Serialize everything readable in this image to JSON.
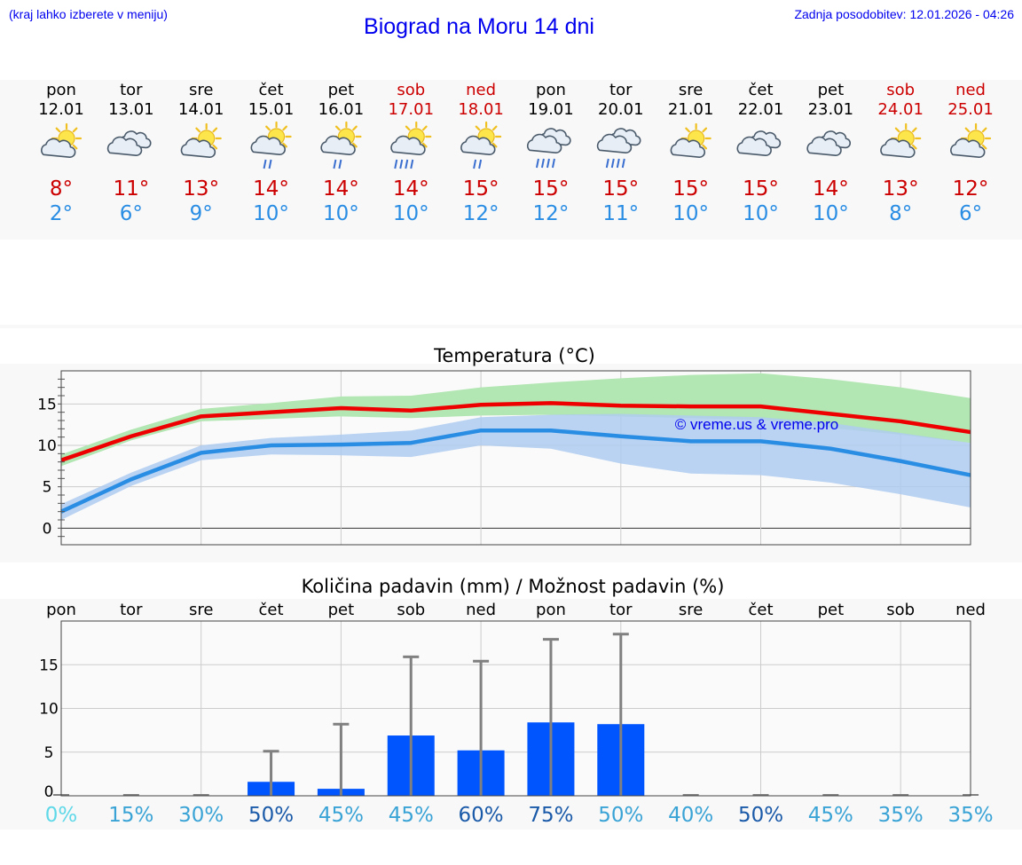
{
  "header": {
    "hint": "(kraj lahko izberete v meniju)",
    "title": "Biograd na Moru 14 dni",
    "updated": "Zadnja posodobitev: 12.01.2026 - 04:26"
  },
  "colors": {
    "weekday": "#000000",
    "weekend": "#cc0000",
    "tmax": "#cc0000",
    "tmin": "#2a8de4",
    "bar": "#0055ff",
    "error": "#808080"
  },
  "days": [
    {
      "name": "pon",
      "date": "12.01",
      "weekend": false,
      "icon": "sun-cloud-icon",
      "tmax": "8°",
      "tmin": "2°"
    },
    {
      "name": "tor",
      "date": "13.01",
      "weekend": false,
      "icon": "clouds-icon",
      "tmax": "11°",
      "tmin": "6°"
    },
    {
      "name": "sre",
      "date": "14.01",
      "weekend": false,
      "icon": "sun-cloud-icon",
      "tmax": "13°",
      "tmin": "9°"
    },
    {
      "name": "čet",
      "date": "15.01",
      "weekend": false,
      "icon": "sun-cloud-rain-icon",
      "tmax": "14°",
      "tmin": "10°"
    },
    {
      "name": "pet",
      "date": "16.01",
      "weekend": false,
      "icon": "sun-cloud-rain-icon",
      "tmax": "14°",
      "tmin": "10°"
    },
    {
      "name": "sob",
      "date": "17.01",
      "weekend": true,
      "icon": "sun-cloud-heavy-rain-icon",
      "tmax": "14°",
      "tmin": "10°"
    },
    {
      "name": "ned",
      "date": "18.01",
      "weekend": true,
      "icon": "sun-cloud-rain-icon",
      "tmax": "15°",
      "tmin": "12°"
    },
    {
      "name": "pon",
      "date": "19.01",
      "weekend": false,
      "icon": "clouds-heavy-rain-icon",
      "tmax": "15°",
      "tmin": "12°"
    },
    {
      "name": "tor",
      "date": "20.01",
      "weekend": false,
      "icon": "clouds-heavy-rain-icon",
      "tmax": "15°",
      "tmin": "11°"
    },
    {
      "name": "sre",
      "date": "21.01",
      "weekend": false,
      "icon": "sun-cloud-icon",
      "tmax": "15°",
      "tmin": "10°"
    },
    {
      "name": "čet",
      "date": "22.01",
      "weekend": false,
      "icon": "clouds-icon",
      "tmax": "15°",
      "tmin": "10°"
    },
    {
      "name": "pet",
      "date": "23.01",
      "weekend": false,
      "icon": "clouds-icon",
      "tmax": "14°",
      "tmin": "10°"
    },
    {
      "name": "sob",
      "date": "24.01",
      "weekend": true,
      "icon": "sun-cloud-icon",
      "tmax": "13°",
      "tmin": "8°"
    },
    {
      "name": "ned",
      "date": "25.01",
      "weekend": true,
      "icon": "sun-cloud-icon",
      "tmax": "12°",
      "tmin": "6°"
    }
  ],
  "chart_data": [
    {
      "type": "line",
      "title": "Temperatura (°C)",
      "watermark": "© vreme.us & vreme.pro",
      "ylim": [
        -2,
        19
      ],
      "yticks": [
        "0",
        "5",
        "10",
        "15"
      ],
      "series": [
        {
          "name": "max",
          "color": "#ee0000",
          "values": [
            8.2,
            11.1,
            13.5,
            14.0,
            14.5,
            14.2,
            14.9,
            15.1,
            14.8,
            14.7,
            14.7,
            13.8,
            12.9,
            11.6
          ]
        },
        {
          "name": "min",
          "color": "#2a8de4",
          "values": [
            2.0,
            5.9,
            9.1,
            10.0,
            10.1,
            10.3,
            11.8,
            11.8,
            11.1,
            10.5,
            10.5,
            9.6,
            8.1,
            6.4
          ]
        }
      ],
      "bands": [
        {
          "name": "max-range",
          "color": "#b2e6b2",
          "low": [
            7.5,
            10.6,
            12.9,
            13.2,
            13.5,
            13.3,
            13.6,
            13.7,
            13.5,
            13.3,
            13.1,
            12.1,
            11.3,
            10.3
          ],
          "high": [
            8.9,
            11.9,
            14.4,
            15.1,
            15.9,
            16.0,
            17.0,
            17.6,
            18.1,
            18.5,
            18.7,
            18.0,
            17.0,
            15.7
          ]
        },
        {
          "name": "min-range",
          "color": "#aecbf0",
          "low": [
            1.0,
            5.1,
            8.2,
            8.9,
            8.8,
            8.6,
            10.0,
            9.6,
            7.8,
            6.6,
            6.4,
            5.5,
            4.1,
            2.5
          ],
          "high": [
            2.9,
            6.7,
            10.0,
            10.9,
            11.3,
            11.8,
            13.4,
            13.7,
            13.8,
            13.6,
            13.4,
            12.7,
            11.5,
            10.3
          ]
        }
      ]
    },
    {
      "type": "bar",
      "title": "Količina padavin (mm) / Možnost padavin (%)",
      "categories": [
        "pon",
        "tor",
        "sre",
        "čet",
        "pet",
        "sob",
        "ned",
        "pon",
        "tor",
        "sre",
        "čet",
        "pet",
        "sob",
        "ned"
      ],
      "ylim": [
        0,
        20
      ],
      "yticks": [
        "0",
        "5",
        "10",
        "15"
      ],
      "values": [
        0,
        0,
        0,
        1.6,
        0.8,
        6.9,
        5.2,
        8.4,
        8.2,
        0,
        0,
        0,
        0,
        0
      ],
      "upper": [
        0,
        0,
        0,
        5.1,
        8.2,
        15.9,
        15.4,
        17.9,
        18.5,
        0,
        0,
        0,
        0,
        0
      ],
      "probabilities": [
        "0%",
        "15%",
        "30%",
        "50%",
        "45%",
        "45%",
        "60%",
        "75%",
        "50%",
        "40%",
        "50%",
        "45%",
        "35%",
        "35%"
      ],
      "probability_colors": [
        "#5fd8e8",
        "#3aa3d6",
        "#3aa3d6",
        "#1a5aa8",
        "#3aa3d6",
        "#3aa3d6",
        "#1a5aa8",
        "#1a5aa8",
        "#3aa3d6",
        "#3aa3d6",
        "#1a5aa8",
        "#3aa3d6",
        "#3aa3d6",
        "#3aa3d6"
      ]
    }
  ]
}
